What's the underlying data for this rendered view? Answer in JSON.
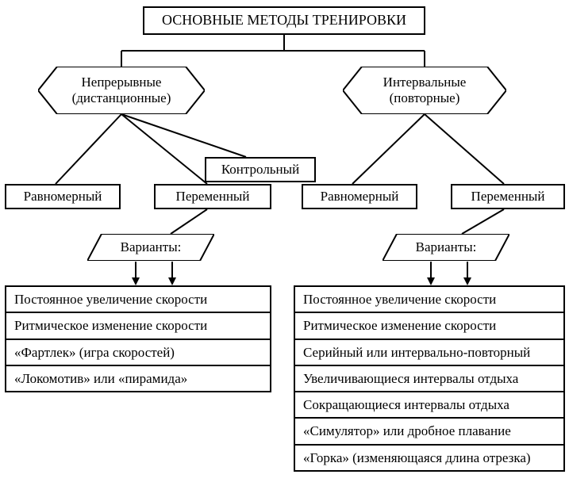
{
  "style": {
    "stroke": "#000000",
    "stroke_width": 2,
    "background": "#ffffff",
    "font_family": "Georgia, Times New Roman, serif",
    "title_fontsize": 18,
    "node_fontsize": 17,
    "list_fontsize": 17
  },
  "diagram": {
    "type": "flowchart",
    "title": "ОСНОВНЫЕ МЕТОДЫ ТРЕНИРОВКИ",
    "left": {
      "category": {
        "line1": "Непрерывные",
        "line2": "(дистанционные)"
      },
      "child1": "Равномерный",
      "child2": "Переменный",
      "extra": "Контрольный",
      "variants_label": "Варианты:",
      "variants": [
        "Постоянное увеличение скорости",
        "Ритмическое изменение скорости",
        "«Фартлек» (игра скоростей)",
        "«Локомотив» или «пирамида»"
      ]
    },
    "right": {
      "category": {
        "line1": "Интервальные",
        "line2": "(повторные)"
      },
      "child1": "Равномерный",
      "child2": "Переменный",
      "variants_label": "Варианты:",
      "variants": [
        "Постоянное увеличение скорости",
        "Ритмическое изменение скорости",
        "Серийный или интервально-повторный",
        "Увеличивающиеся интервалы отдыха",
        "Сокращающиеся интервалы отдыха",
        "«Симулятор» или дробное плавание",
        "«Горка» (изменяющаяся длина отрезка)"
      ]
    }
  }
}
